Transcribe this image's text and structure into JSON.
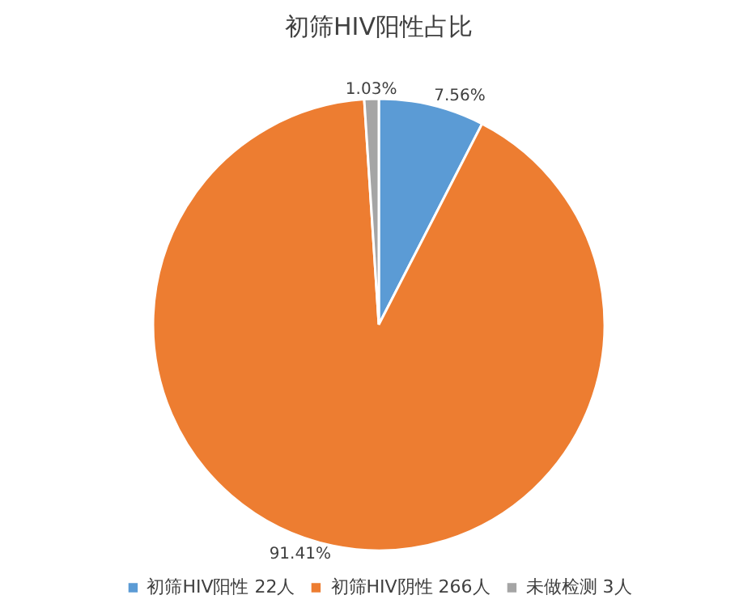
{
  "chart_data": {
    "type": "pie",
    "title": "初筛HIV阳性占比",
    "categories": [
      "初筛HIV阳性 22人",
      "初筛HIV阴性 266人",
      "未做检测 3人"
    ],
    "values": [
      7.56,
      91.41,
      1.03
    ],
    "colors": [
      "#5b9bd5",
      "#ed7d31",
      "#a5a5a5"
    ],
    "value_labels": [
      "7.56%",
      "91.41%",
      "1.03%"
    ],
    "legend": "bottom"
  }
}
